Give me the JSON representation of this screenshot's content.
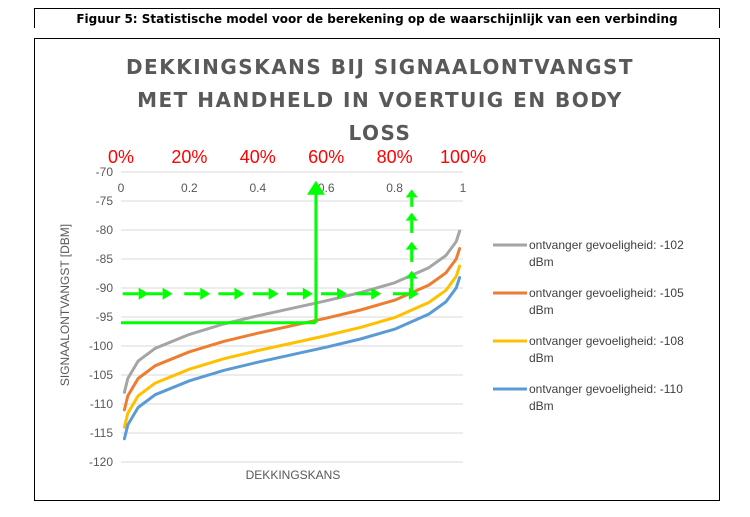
{
  "caption": "Figuur 5: Statistische model voor de berekening op de waarschijnlijk van een verbinding",
  "chart_data": {
    "type": "line",
    "title_lines": [
      "DEKKINGSKANS BIJ SIGNAALONTVANGST",
      "MET HANDHELD IN VOERTUIG EN BODY",
      "LOSS"
    ],
    "xlabel": "DEKKINGSKANS",
    "ylabel": "SIGNAALONTVANGST [DBM]",
    "xlim": [
      0,
      1
    ],
    "ylim": [
      -120,
      -70
    ],
    "x_ticks": [
      "0",
      "0.2",
      "0.4",
      "0.6",
      "0.8",
      "1"
    ],
    "y_ticks": [
      "-70",
      "-75",
      "-80",
      "-85",
      "-90",
      "-95",
      "-100",
      "-105",
      "-110",
      "-115",
      "-120"
    ],
    "percent_labels": [
      "0%",
      "20%",
      "40%",
      "60%",
      "80%",
      "100%"
    ],
    "legend_position": "right",
    "grid": "horizontal",
    "x": [
      0.01,
      0.02,
      0.05,
      0.1,
      0.2,
      0.3,
      0.4,
      0.5,
      0.6,
      0.7,
      0.8,
      0.9,
      0.95,
      0.98,
      0.99
    ],
    "series": [
      {
        "name": "ontvanger gevoeligheid: -102 dBm",
        "color": "#a5a5a5",
        "values": [
          -108,
          -105.6,
          -102.6,
          -100.4,
          -98,
          -96.2,
          -94.8,
          -93.5,
          -92.2,
          -90.8,
          -89.1,
          -86.5,
          -84.4,
          -82,
          -80.2
        ]
      },
      {
        "name": "ontvanger gevoeligheid: -105 dBm",
        "color": "#ed7d31",
        "values": [
          -111,
          -108.6,
          -105.6,
          -103.4,
          -101,
          -99.2,
          -97.8,
          -96.5,
          -95.2,
          -93.8,
          -92.1,
          -89.5,
          -87.4,
          -85,
          -83.2
        ]
      },
      {
        "name": "ontvanger gevoeligheid: -108 dBm",
        "color": "#ffc000",
        "values": [
          -114,
          -111.6,
          -108.6,
          -106.4,
          -104,
          -102.2,
          -100.8,
          -99.5,
          -98.2,
          -96.8,
          -95.1,
          -92.5,
          -90.4,
          -88,
          -86.2
        ]
      },
      {
        "name": "ontvanger gevoeligheid: -110 dBm",
        "color": "#5b9bd5",
        "values": [
          -116,
          -113.6,
          -110.6,
          -108.4,
          -106,
          -104.2,
          -102.8,
          -101.5,
          -100.2,
          -98.8,
          -97.1,
          -94.5,
          -92.4,
          -90,
          -88.2
        ]
      }
    ],
    "annotations": {
      "color": "#00ff00",
      "dashed_arrow_level": -91,
      "dashed_arrow_x_positions": [
        0.04,
        0.11,
        0.22,
        0.32,
        0.42,
        0.52,
        0.62,
        0.72,
        0.83
      ],
      "solid_path": [
        [
          0,
          -96
        ],
        [
          0.57,
          -96
        ],
        [
          0.57,
          -71.5
        ]
      ],
      "up_arrows": [
        {
          "x": 0.85,
          "from": -90.5,
          "to": -87
        },
        {
          "x": 0.85,
          "from": -85.5,
          "to": -82
        },
        {
          "x": 0.85,
          "from": -80.5,
          "to": -77
        },
        {
          "x": 0.85,
          "from": -76,
          "to": -73
        }
      ]
    }
  }
}
